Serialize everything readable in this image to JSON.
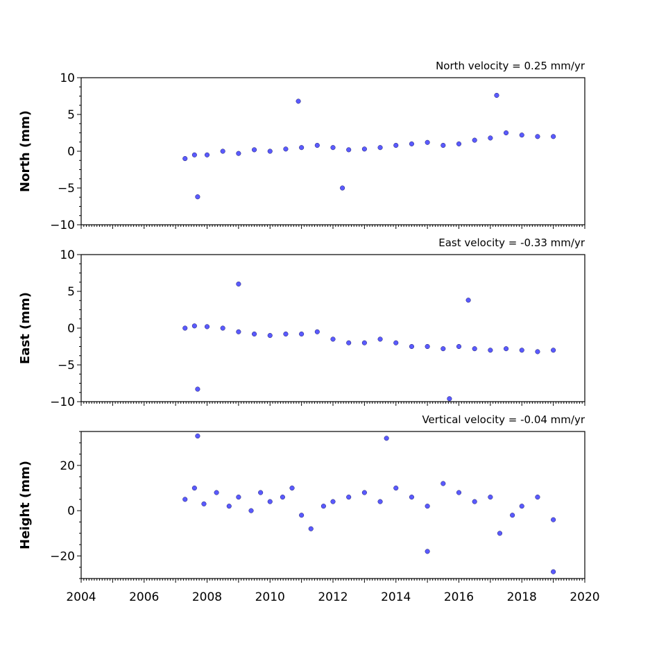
{
  "chart_data": [
    {
      "type": "scatter",
      "title": "North velocity = 0.25 mm/yr",
      "ylabel": "North (mm)",
      "xlim": [
        2004,
        2020
      ],
      "ylim": [
        -10,
        10
      ],
      "yticks": [
        -10,
        -5,
        0,
        5,
        10
      ],
      "series": [
        {
          "x": [
            2007.3,
            2007.6,
            2008.0,
            2008.5,
            2009.0,
            2009.5,
            2010.0,
            2010.5,
            2011.0,
            2011.5,
            2012.0,
            2012.5,
            2013.0,
            2013.5,
            2014.0,
            2014.5,
            2015.0,
            2015.5,
            2016.0,
            2016.5,
            2017.0,
            2017.5,
            2018.0,
            2018.5,
            2019.0,
            2007.7,
            2010.9,
            2017.2,
            2012.3
          ],
          "y": [
            -1.0,
            -0.5,
            -0.5,
            0.0,
            -0.3,
            0.2,
            0.0,
            0.3,
            0.5,
            0.8,
            0.5,
            0.2,
            0.3,
            0.5,
            0.8,
            1.0,
            1.2,
            0.8,
            1.0,
            1.5,
            1.8,
            2.5,
            2.2,
            2.0,
            2.0,
            -6.2,
            6.8,
            7.6,
            -5.0
          ]
        }
      ]
    },
    {
      "type": "scatter",
      "title": "East velocity = -0.33 mm/yr",
      "ylabel": "East (mm)",
      "xlim": [
        2004,
        2020
      ],
      "ylim": [
        -10,
        10
      ],
      "yticks": [
        -10,
        -5,
        0,
        5,
        10
      ],
      "series": [
        {
          "x": [
            2007.3,
            2007.6,
            2008.0,
            2008.5,
            2009.0,
            2009.5,
            2010.0,
            2010.5,
            2011.0,
            2011.5,
            2012.0,
            2012.5,
            2013.0,
            2013.5,
            2014.0,
            2014.5,
            2015.0,
            2015.5,
            2016.0,
            2016.5,
            2017.0,
            2017.5,
            2018.0,
            2018.5,
            2019.0,
            2009.0,
            2007.7,
            2015.7,
            2016.3
          ],
          "y": [
            0.0,
            0.3,
            0.2,
            0.0,
            -0.5,
            -0.8,
            -1.0,
            -0.8,
            -0.8,
            -0.5,
            -1.5,
            -2.0,
            -2.0,
            -1.5,
            -2.0,
            -2.5,
            -2.5,
            -2.8,
            -2.5,
            -2.8,
            -3.0,
            -2.8,
            -3.0,
            -3.2,
            -3.0,
            6.0,
            -8.3,
            -9.6,
            3.8
          ]
        }
      ]
    },
    {
      "type": "scatter",
      "title": "Vertical velocity = -0.04 mm/yr",
      "ylabel": "Height (mm)",
      "xlim": [
        2004,
        2020
      ],
      "ylim": [
        -30,
        35
      ],
      "yticks": [
        -20,
        0,
        20
      ],
      "series": [
        {
          "x": [
            2007.3,
            2007.6,
            2007.9,
            2008.3,
            2008.7,
            2009.0,
            2009.4,
            2009.7,
            2010.0,
            2010.4,
            2010.7,
            2011.0,
            2011.3,
            2011.7,
            2012.0,
            2012.5,
            2013.0,
            2013.5,
            2014.0,
            2014.5,
            2015.0,
            2015.5,
            2016.0,
            2016.5,
            2017.0,
            2017.3,
            2017.7,
            2018.0,
            2018.5,
            2019.0,
            2007.7,
            2013.7,
            2019.0,
            2015.0
          ],
          "y": [
            5,
            10,
            3,
            8,
            2,
            6,
            0,
            8,
            4,
            6,
            10,
            -2,
            -8,
            2,
            4,
            6,
            8,
            4,
            10,
            6,
            2,
            12,
            8,
            4,
            6,
            -10,
            -2,
            2,
            6,
            -4,
            33,
            32,
            -27,
            -18
          ]
        }
      ]
    }
  ],
  "xticks": [
    2004,
    2006,
    2008,
    2010,
    2012,
    2014,
    2016,
    2018,
    2020
  ],
  "marker_color": "#5a5aff"
}
